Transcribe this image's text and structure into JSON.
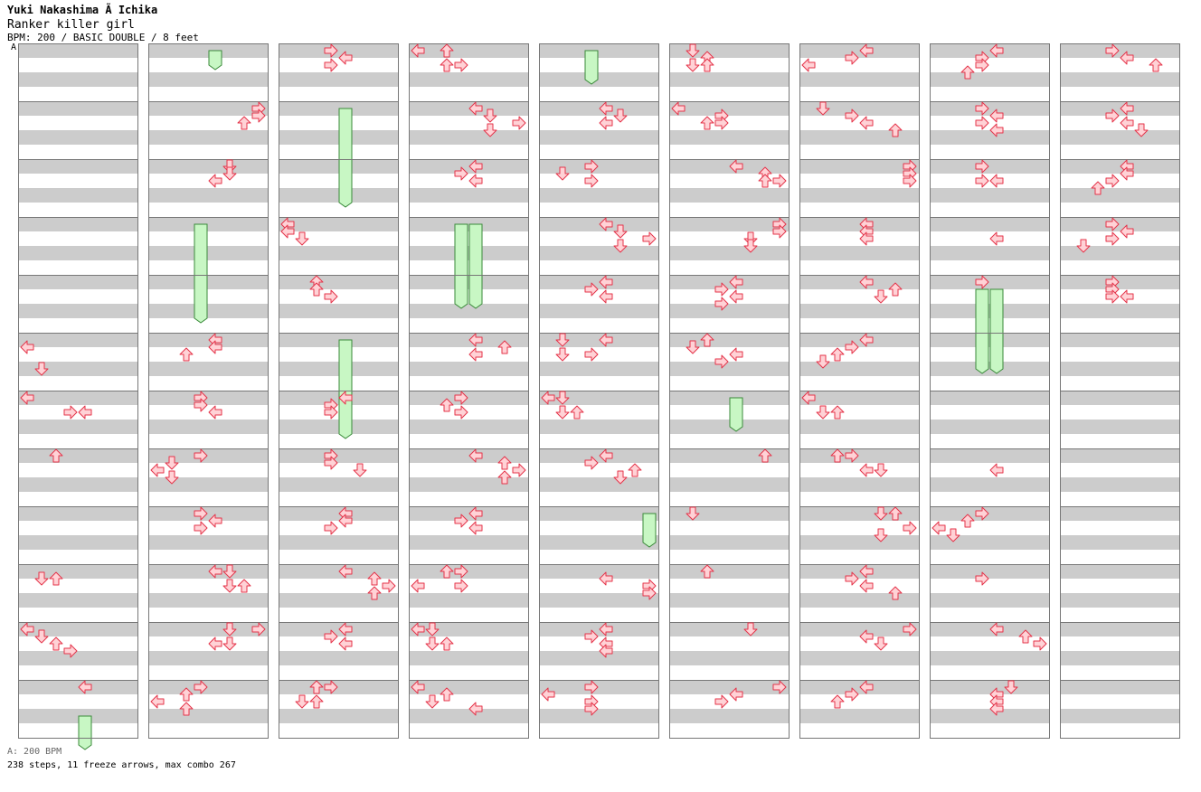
{
  "song": {
    "artist": "Yuki Nakashima Ã  Ichika",
    "title": "Ranker killer girl",
    "meta": "BPM: 200 / BASIC DOUBLE / 8 feet",
    "section_label": "A"
  },
  "footer": {
    "bpm_text": "A: 200 BPM",
    "stats_text": "238 steps, 11 freeze arrows, max combo 267"
  },
  "chart_data": {
    "type": "step-chart",
    "lanes": 8,
    "lane_directions": [
      "left",
      "down",
      "up",
      "right",
      "left",
      "down",
      "up",
      "right"
    ],
    "columns": 9,
    "measures_per_column": 12,
    "rows_per_measure": 16,
    "notes": [
      [
        0,
        5,
        2,
        0
      ],
      [
        0,
        5,
        8,
        1
      ],
      [
        0,
        6,
        0,
        0
      ],
      [
        0,
        6,
        4,
        3
      ],
      [
        0,
        6,
        4,
        4
      ],
      [
        0,
        7,
        0,
        2
      ],
      [
        0,
        9,
        2,
        1
      ],
      [
        0,
        9,
        2,
        2
      ],
      [
        0,
        10,
        0,
        0
      ],
      [
        0,
        10,
        2,
        1
      ],
      [
        0,
        10,
        4,
        2
      ],
      [
        0,
        10,
        6,
        3
      ],
      [
        0,
        11,
        0,
        4
      ],
      [
        1,
        1,
        0,
        7
      ],
      [
        1,
        1,
        2,
        7
      ],
      [
        1,
        1,
        4,
        6
      ],
      [
        1,
        2,
        0,
        5
      ],
      [
        1,
        2,
        2,
        5
      ],
      [
        1,
        2,
        4,
        4
      ],
      [
        1,
        5,
        0,
        4
      ],
      [
        1,
        5,
        2,
        4
      ],
      [
        1,
        5,
        4,
        2
      ],
      [
        1,
        6,
        0,
        3
      ],
      [
        1,
        6,
        2,
        3
      ],
      [
        1,
        6,
        4,
        4
      ],
      [
        1,
        7,
        0,
        3
      ],
      [
        1,
        7,
        2,
        1
      ],
      [
        1,
        7,
        4,
        0
      ],
      [
        1,
        7,
        6,
        1
      ],
      [
        1,
        8,
        0,
        3
      ],
      [
        1,
        8,
        2,
        4
      ],
      [
        1,
        8,
        4,
        3
      ],
      [
        1,
        9,
        0,
        4
      ],
      [
        1,
        9,
        0,
        5
      ],
      [
        1,
        9,
        4,
        5
      ],
      [
        1,
        9,
        4,
        6
      ],
      [
        1,
        10,
        0,
        5
      ],
      [
        1,
        10,
        0,
        7
      ],
      [
        1,
        10,
        4,
        4
      ],
      [
        1,
        10,
        4,
        5
      ],
      [
        1,
        11,
        0,
        3
      ],
      [
        1,
        11,
        2,
        2
      ],
      [
        1,
        11,
        4,
        0
      ],
      [
        1,
        11,
        6,
        2
      ],
      [
        2,
        0,
        0,
        3
      ],
      [
        2,
        0,
        2,
        4
      ],
      [
        2,
        0,
        4,
        3
      ],
      [
        2,
        3,
        0,
        0
      ],
      [
        2,
        3,
        2,
        0
      ],
      [
        2,
        3,
        4,
        1
      ],
      [
        2,
        4,
        0,
        2
      ],
      [
        2,
        4,
        2,
        2
      ],
      [
        2,
        4,
        4,
        3
      ],
      [
        2,
        6,
        0,
        4
      ],
      [
        2,
        6,
        2,
        3
      ],
      [
        2,
        6,
        4,
        3
      ],
      [
        2,
        7,
        0,
        3
      ],
      [
        2,
        7,
        2,
        3
      ],
      [
        2,
        7,
        4,
        5
      ],
      [
        2,
        8,
        0,
        4
      ],
      [
        2,
        8,
        2,
        4
      ],
      [
        2,
        8,
        4,
        3
      ],
      [
        2,
        9,
        0,
        4
      ],
      [
        2,
        9,
        2,
        6
      ],
      [
        2,
        9,
        4,
        7
      ],
      [
        2,
        9,
        6,
        6
      ],
      [
        2,
        10,
        0,
        4
      ],
      [
        2,
        10,
        2,
        3
      ],
      [
        2,
        10,
        4,
        4
      ],
      [
        2,
        11,
        0,
        2
      ],
      [
        2,
        11,
        0,
        3
      ],
      [
        2,
        11,
        4,
        1
      ],
      [
        2,
        11,
        4,
        2
      ],
      [
        3,
        0,
        0,
        0
      ],
      [
        3,
        0,
        0,
        2
      ],
      [
        3,
        0,
        4,
        2
      ],
      [
        3,
        0,
        4,
        3
      ],
      [
        3,
        1,
        0,
        4
      ],
      [
        3,
        1,
        2,
        5
      ],
      [
        3,
        1,
        4,
        7
      ],
      [
        3,
        1,
        6,
        5
      ],
      [
        3,
        2,
        0,
        4
      ],
      [
        3,
        2,
        2,
        3
      ],
      [
        3,
        2,
        4,
        4
      ],
      [
        3,
        5,
        0,
        4
      ],
      [
        3,
        5,
        2,
        6
      ],
      [
        3,
        5,
        4,
        4
      ],
      [
        3,
        6,
        0,
        3
      ],
      [
        3,
        6,
        2,
        2
      ],
      [
        3,
        6,
        4,
        3
      ],
      [
        3,
        7,
        0,
        4
      ],
      [
        3,
        7,
        2,
        6
      ],
      [
        3,
        7,
        4,
        7
      ],
      [
        3,
        7,
        6,
        6
      ],
      [
        3,
        8,
        0,
        4
      ],
      [
        3,
        8,
        2,
        3
      ],
      [
        3,
        8,
        4,
        4
      ],
      [
        3,
        9,
        0,
        2
      ],
      [
        3,
        9,
        0,
        3
      ],
      [
        3,
        9,
        4,
        0
      ],
      [
        3,
        9,
        4,
        3
      ],
      [
        3,
        10,
        0,
        0
      ],
      [
        3,
        10,
        0,
        1
      ],
      [
        3,
        10,
        4,
        1
      ],
      [
        3,
        10,
        4,
        2
      ],
      [
        3,
        11,
        0,
        0
      ],
      [
        3,
        11,
        2,
        2
      ],
      [
        3,
        11,
        4,
        1
      ],
      [
        3,
        11,
        6,
        4
      ],
      [
        4,
        1,
        0,
        4
      ],
      [
        4,
        1,
        2,
        5
      ],
      [
        4,
        1,
        4,
        4
      ],
      [
        4,
        2,
        0,
        3
      ],
      [
        4,
        2,
        2,
        1
      ],
      [
        4,
        2,
        4,
        3
      ],
      [
        4,
        3,
        0,
        4
      ],
      [
        4,
        3,
        2,
        5
      ],
      [
        4,
        3,
        4,
        7
      ],
      [
        4,
        3,
        6,
        5
      ],
      [
        4,
        4,
        0,
        4
      ],
      [
        4,
        4,
        2,
        3
      ],
      [
        4,
        4,
        4,
        4
      ],
      [
        4,
        5,
        0,
        1
      ],
      [
        4,
        5,
        0,
        4
      ],
      [
        4,
        5,
        4,
        1
      ],
      [
        4,
        5,
        4,
        3
      ],
      [
        4,
        6,
        0,
        0
      ],
      [
        4,
        6,
        0,
        1
      ],
      [
        4,
        6,
        4,
        1
      ],
      [
        4,
        6,
        4,
        2
      ],
      [
        4,
        7,
        0,
        4
      ],
      [
        4,
        7,
        2,
        3
      ],
      [
        4,
        7,
        4,
        6
      ],
      [
        4,
        7,
        6,
        5
      ],
      [
        4,
        9,
        2,
        4
      ],
      [
        4,
        9,
        4,
        7
      ],
      [
        4,
        9,
        6,
        7
      ],
      [
        4,
        10,
        0,
        4
      ],
      [
        4,
        10,
        2,
        3
      ],
      [
        4,
        10,
        4,
        4
      ],
      [
        4,
        10,
        6,
        4
      ],
      [
        4,
        11,
        0,
        3
      ],
      [
        4,
        11,
        2,
        0
      ],
      [
        4,
        11,
        4,
        3
      ],
      [
        4,
        11,
        6,
        3
      ],
      [
        5,
        0,
        0,
        1
      ],
      [
        5,
        0,
        2,
        2
      ],
      [
        5,
        0,
        4,
        1
      ],
      [
        5,
        0,
        4,
        2
      ],
      [
        5,
        1,
        0,
        0
      ],
      [
        5,
        1,
        2,
        3
      ],
      [
        5,
        1,
        4,
        2
      ],
      [
        5,
        1,
        4,
        3
      ],
      [
        5,
        2,
        0,
        4
      ],
      [
        5,
        2,
        2,
        6
      ],
      [
        5,
        2,
        4,
        6
      ],
      [
        5,
        2,
        4,
        7
      ],
      [
        5,
        3,
        0,
        7
      ],
      [
        5,
        3,
        2,
        7
      ],
      [
        5,
        3,
        4,
        5
      ],
      [
        5,
        3,
        6,
        5
      ],
      [
        5,
        4,
        0,
        4
      ],
      [
        5,
        4,
        2,
        3
      ],
      [
        5,
        4,
        4,
        4
      ],
      [
        5,
        4,
        6,
        3
      ],
      [
        5,
        5,
        0,
        2
      ],
      [
        5,
        5,
        2,
        1
      ],
      [
        5,
        5,
        4,
        4
      ],
      [
        5,
        5,
        6,
        3
      ],
      [
        5,
        7,
        0,
        6
      ],
      [
        5,
        8,
        0,
        1
      ],
      [
        5,
        9,
        0,
        2
      ],
      [
        5,
        10,
        0,
        5
      ],
      [
        5,
        11,
        0,
        7
      ],
      [
        5,
        11,
        2,
        4
      ],
      [
        5,
        11,
        4,
        3
      ],
      [
        6,
        0,
        0,
        4
      ],
      [
        6,
        0,
        2,
        3
      ],
      [
        6,
        0,
        4,
        0
      ],
      [
        6,
        1,
        0,
        1
      ],
      [
        6,
        1,
        2,
        3
      ],
      [
        6,
        1,
        4,
        4
      ],
      [
        6,
        1,
        6,
        6
      ],
      [
        6,
        2,
        0,
        7
      ],
      [
        6,
        2,
        2,
        7
      ],
      [
        6,
        2,
        4,
        7
      ],
      [
        6,
        3,
        0,
        4
      ],
      [
        6,
        3,
        2,
        4
      ],
      [
        6,
        3,
        4,
        4
      ],
      [
        6,
        4,
        0,
        4
      ],
      [
        6,
        4,
        2,
        6
      ],
      [
        6,
        4,
        4,
        5
      ],
      [
        6,
        5,
        0,
        4
      ],
      [
        6,
        5,
        2,
        3
      ],
      [
        6,
        5,
        4,
        2
      ],
      [
        6,
        5,
        6,
        1
      ],
      [
        6,
        6,
        0,
        0
      ],
      [
        6,
        6,
        4,
        1
      ],
      [
        6,
        6,
        4,
        2
      ],
      [
        6,
        7,
        0,
        2
      ],
      [
        6,
        7,
        0,
        3
      ],
      [
        6,
        7,
        4,
        4
      ],
      [
        6,
        7,
        4,
        5
      ],
      [
        6,
        8,
        0,
        5
      ],
      [
        6,
        8,
        0,
        6
      ],
      [
        6,
        8,
        4,
        7
      ],
      [
        6,
        8,
        6,
        5
      ],
      [
        6,
        9,
        0,
        4
      ],
      [
        6,
        9,
        2,
        3
      ],
      [
        6,
        9,
        4,
        4
      ],
      [
        6,
        9,
        6,
        6
      ],
      [
        6,
        10,
        0,
        7
      ],
      [
        6,
        10,
        2,
        4
      ],
      [
        6,
        10,
        4,
        5
      ],
      [
        6,
        11,
        0,
        4
      ],
      [
        6,
        11,
        2,
        3
      ],
      [
        6,
        11,
        4,
        2
      ],
      [
        7,
        0,
        0,
        4
      ],
      [
        7,
        0,
        2,
        3
      ],
      [
        7,
        0,
        4,
        3
      ],
      [
        7,
        0,
        6,
        2
      ],
      [
        7,
        1,
        0,
        3
      ],
      [
        7,
        1,
        2,
        4
      ],
      [
        7,
        1,
        4,
        3
      ],
      [
        7,
        1,
        6,
        4
      ],
      [
        7,
        2,
        0,
        3
      ],
      [
        7,
        2,
        4,
        3
      ],
      [
        7,
        2,
        4,
        4
      ],
      [
        7,
        3,
        4,
        4
      ],
      [
        7,
        4,
        0,
        3
      ],
      [
        7,
        7,
        4,
        4
      ],
      [
        7,
        8,
        0,
        3
      ],
      [
        7,
        8,
        2,
        2
      ],
      [
        7,
        8,
        4,
        0
      ],
      [
        7,
        8,
        6,
        1
      ],
      [
        7,
        9,
        2,
        3
      ],
      [
        7,
        10,
        0,
        4
      ],
      [
        7,
        10,
        2,
        6
      ],
      [
        7,
        10,
        4,
        7
      ],
      [
        7,
        11,
        0,
        5
      ],
      [
        7,
        11,
        2,
        4
      ],
      [
        7,
        11,
        4,
        4
      ],
      [
        7,
        11,
        6,
        4
      ],
      [
        8,
        0,
        0,
        3
      ],
      [
        8,
        0,
        2,
        4
      ],
      [
        8,
        0,
        4,
        6
      ],
      [
        8,
        1,
        0,
        4
      ],
      [
        8,
        1,
        2,
        3
      ],
      [
        8,
        1,
        4,
        4
      ],
      [
        8,
        1,
        6,
        5
      ],
      [
        8,
        2,
        0,
        4
      ],
      [
        8,
        2,
        2,
        4
      ],
      [
        8,
        2,
        4,
        3
      ],
      [
        8,
        2,
        6,
        2
      ],
      [
        8,
        3,
        0,
        3
      ],
      [
        8,
        3,
        2,
        4
      ],
      [
        8,
        3,
        4,
        3
      ],
      [
        8,
        3,
        6,
        1
      ],
      [
        8,
        4,
        0,
        3
      ],
      [
        8,
        4,
        2,
        3
      ],
      [
        8,
        4,
        4,
        3
      ],
      [
        8,
        4,
        4,
        4
      ]
    ],
    "freezes": [
      [
        0,
        11,
        8,
        4,
        12,
        12,
        0
      ],
      [
        1,
        0,
        0,
        4,
        0,
        6,
        0
      ],
      [
        1,
        3,
        0,
        3,
        4,
        12,
        0
      ],
      [
        2,
        1,
        0,
        4,
        2,
        12,
        0
      ],
      [
        2,
        5,
        0,
        4,
        6,
        12,
        0
      ],
      [
        3,
        3,
        0,
        3,
        4,
        8,
        0
      ],
      [
        3,
        3,
        0,
        4,
        4,
        8,
        0
      ],
      [
        4,
        0,
        0,
        3,
        0,
        10,
        0
      ],
      [
        4,
        8,
        0,
        7,
        8,
        10,
        0
      ],
      [
        5,
        6,
        0,
        4,
        6,
        10,
        0
      ],
      [
        7,
        4,
        2,
        3,
        5,
        10,
        0
      ],
      [
        7,
        4,
        2,
        4,
        5,
        10,
        0
      ]
    ]
  },
  "colors": {
    "arrow_fill": "#ffd2d6",
    "arrow_stroke": "#e4344a",
    "freeze_fill": "#c8f7c4",
    "freeze_stroke": "#3a8a3a",
    "stripe": "#cccccc",
    "measure_border": "#777777"
  }
}
